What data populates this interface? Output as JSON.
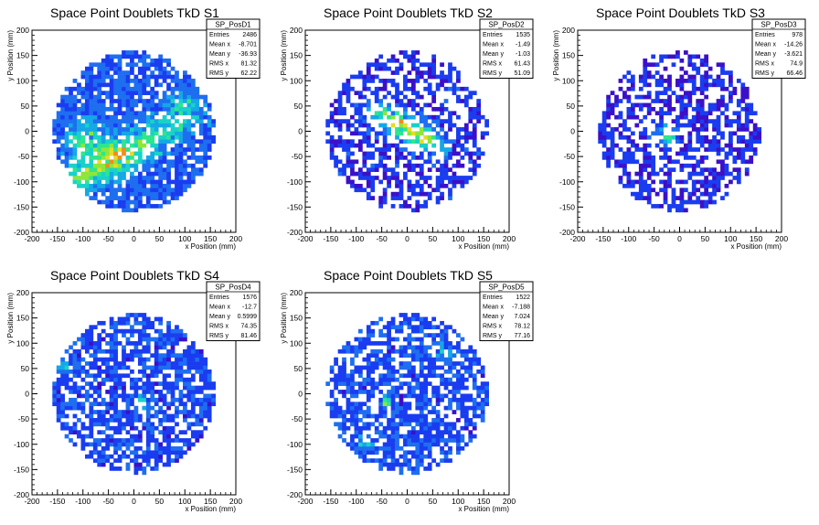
{
  "chart_data": [
    {
      "type": "heatmap",
      "title": "Space Point Doublets TkD S1",
      "xlabel": "x Position (mm)",
      "ylabel": "y Position (mm)",
      "xlim": [
        -200,
        200
      ],
      "ylim": [
        -200,
        200
      ],
      "xticks": [
        -200,
        -150,
        -100,
        -50,
        0,
        50,
        100,
        150,
        200
      ],
      "yticks": [
        -200,
        -150,
        -100,
        -50,
        0,
        50,
        100,
        150,
        200
      ],
      "stats": {
        "name": "SP_PosD1",
        "rows": [
          {
            "label": "Entries",
            "value": "2486"
          },
          {
            "label": "Mean x",
            "value": "-8.701"
          },
          {
            "label": "Mean y",
            "value": "-36.93"
          },
          {
            "label": "RMS x",
            "value": "81.32"
          },
          {
            "label": "RMS y",
            "value": "62.22"
          }
        ]
      },
      "pattern": {
        "bandAngle": 28,
        "bandCx": -40,
        "bandCy": -55,
        "bandLen": 150,
        "bandWidth": 22,
        "bandPeak": 5.5,
        "base": 1.2,
        "spot": [
          -95,
          -15,
          3.0,
          25
        ],
        "spot2": [
          100,
          40,
          2.6,
          25
        ],
        "fill": 0.78,
        "seed": 11
      }
    },
    {
      "type": "heatmap",
      "title": "Space Point Doublets TkD S2",
      "xlabel": "x Position (mm)",
      "ylabel": "y Position (mm)",
      "xlim": [
        -200,
        200
      ],
      "ylim": [
        -200,
        200
      ],
      "xticks": [
        -200,
        -150,
        -100,
        -50,
        0,
        50,
        100,
        150,
        200
      ],
      "yticks": [
        -200,
        -150,
        -100,
        -50,
        0,
        50,
        100,
        150,
        200
      ],
      "stats": {
        "name": "SP_PosD2",
        "rows": [
          {
            "label": "Entries",
            "value": "1535"
          },
          {
            "label": "Mean x",
            "value": "-1.49"
          },
          {
            "label": "Mean y",
            "value": "-1.03"
          },
          {
            "label": "RMS x",
            "value": "61.43"
          },
          {
            "label": "RMS y",
            "value": "51.09"
          }
        ]
      },
      "pattern": {
        "bandAngle": -30,
        "bandCx": 0,
        "bandCy": 5,
        "bandLen": 95,
        "bandWidth": 16,
        "bandPeak": 7.0,
        "base": 0.45,
        "spot": [
          0,
          0,
          0,
          1
        ],
        "spot2": [
          0,
          0,
          0,
          1
        ],
        "fill": 0.55,
        "seed": 23
      }
    },
    {
      "type": "heatmap",
      "title": "Space Point Doublets TkD S3",
      "xlabel": "x Position (mm)",
      "ylabel": "y Position (mm)",
      "xlim": [
        -200,
        200
      ],
      "ylim": [
        -200,
        200
      ],
      "xticks": [
        -200,
        -150,
        -100,
        -50,
        0,
        50,
        100,
        150,
        200
      ],
      "yticks": [
        -200,
        -150,
        -100,
        -50,
        0,
        50,
        100,
        150,
        200
      ],
      "stats": {
        "name": "SP_PosD3",
        "rows": [
          {
            "label": "Entries",
            "value": "978"
          },
          {
            "label": "Mean x",
            "value": "-14.26"
          },
          {
            "label": "Mean y",
            "value": "-3.621"
          },
          {
            "label": "RMS x",
            "value": "74.9"
          },
          {
            "label": "RMS y",
            "value": "66.46"
          }
        ]
      },
      "pattern": {
        "bandAngle": -40,
        "bandCx": -25,
        "bandCy": -10,
        "bandLen": 30,
        "bandWidth": 12,
        "bandPeak": 4.0,
        "base": 0.35,
        "spot": [
          0,
          0,
          0,
          1
        ],
        "spot2": [
          0,
          0,
          0,
          1
        ],
        "fill": 0.55,
        "seed": 37
      }
    },
    {
      "type": "heatmap",
      "title": "Space Point Doublets TkD S4",
      "xlabel": "x Position (mm)",
      "ylabel": "y Position (mm)",
      "xlim": [
        -200,
        200
      ],
      "ylim": [
        -200,
        200
      ],
      "xticks": [
        -200,
        -150,
        -100,
        -50,
        0,
        50,
        100,
        150,
        200
      ],
      "yticks": [
        -200,
        -150,
        -100,
        -50,
        0,
        50,
        100,
        150,
        200
      ],
      "stats": {
        "name": "SP_PosD4",
        "rows": [
          {
            "label": "Entries",
            "value": "1576"
          },
          {
            "label": "Mean x",
            "value": "-12.7"
          },
          {
            "label": "Mean y",
            "value": "0.5999"
          },
          {
            "label": "RMS x",
            "value": "74.35"
          },
          {
            "label": "RMS y",
            "value": "81.46"
          }
        ]
      },
      "pattern": {
        "bandAngle": 0,
        "bandCx": 10,
        "bandCy": -15,
        "bandLen": 12,
        "bandWidth": 8,
        "bandPeak": 5.5,
        "base": 0.9,
        "spot": [
          -140,
          55,
          3.5,
          8
        ],
        "spot2": [
          0,
          0,
          0,
          1
        ],
        "fill": 0.66,
        "seed": 53
      }
    },
    {
      "type": "heatmap",
      "title": "Space Point Doublets TkD S5",
      "xlabel": "x Position (mm)",
      "ylabel": "y Position (mm)",
      "xlim": [
        -200,
        200
      ],
      "ylim": [
        -200,
        200
      ],
      "xticks": [
        -200,
        -150,
        -100,
        -50,
        0,
        50,
        100,
        150,
        200
      ],
      "yticks": [
        -200,
        -150,
        -100,
        -50,
        0,
        50,
        100,
        150,
        200
      ],
      "stats": {
        "name": "SP_PosD5",
        "rows": [
          {
            "label": "Entries",
            "value": "1522"
          },
          {
            "label": "Mean x",
            "value": "-7.188"
          },
          {
            "label": "Mean y",
            "value": "7.024"
          },
          {
            "label": "RMS x",
            "value": "78.12"
          },
          {
            "label": "RMS y",
            "value": "77.16"
          }
        ]
      },
      "pattern": {
        "bandAngle": 0,
        "bandCx": -40,
        "bandCy": -15,
        "bandLen": 10,
        "bandWidth": 8,
        "bandPeak": 5.5,
        "base": 0.95,
        "spot": [
          -80,
          -95,
          2.2,
          12
        ],
        "spot2": [
          70,
          80,
          2.0,
          14
        ],
        "fill": 0.68,
        "seed": 71
      }
    }
  ]
}
